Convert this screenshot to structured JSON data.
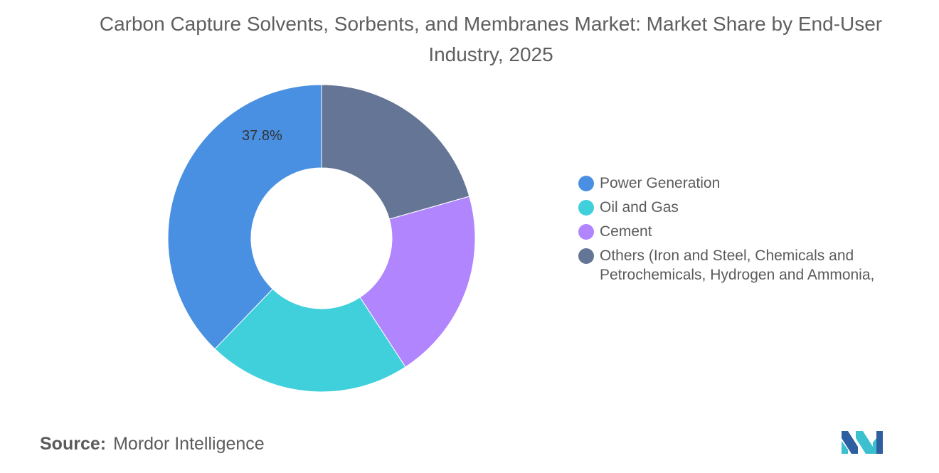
{
  "title": "Carbon Capture Solvents, Sorbents, and Membranes Market: Market Share by End-User Industry, 2025",
  "source": {
    "label": "Source:",
    "value": "Mordor Intelligence"
  },
  "chart_data": {
    "type": "pie",
    "donut": true,
    "title": "Carbon Capture Solvents, Sorbents, and Membranes Market: Market Share by End-User Industry, 2025",
    "legend_position": "right",
    "slices": [
      {
        "name": "Power Generation",
        "value": 37.8,
        "color": "#4a90e2",
        "label": "37.8%"
      },
      {
        "name": "Oil and Gas",
        "value": 21.4,
        "color": "#40d0dc",
        "label": ""
      },
      {
        "name": "Cement",
        "value": 20.2,
        "color": "#b085fd",
        "label": ""
      },
      {
        "name": "Others (Iron and Steel, Chemicals and Petrochemicals, Hydrogen and Ammonia,",
        "value": 20.6,
        "color": "#647596",
        "label": ""
      }
    ]
  },
  "logo": {
    "name": "mordor-intelligence-logo",
    "colors": [
      "#2e5fa1",
      "#3cc0cf"
    ]
  }
}
